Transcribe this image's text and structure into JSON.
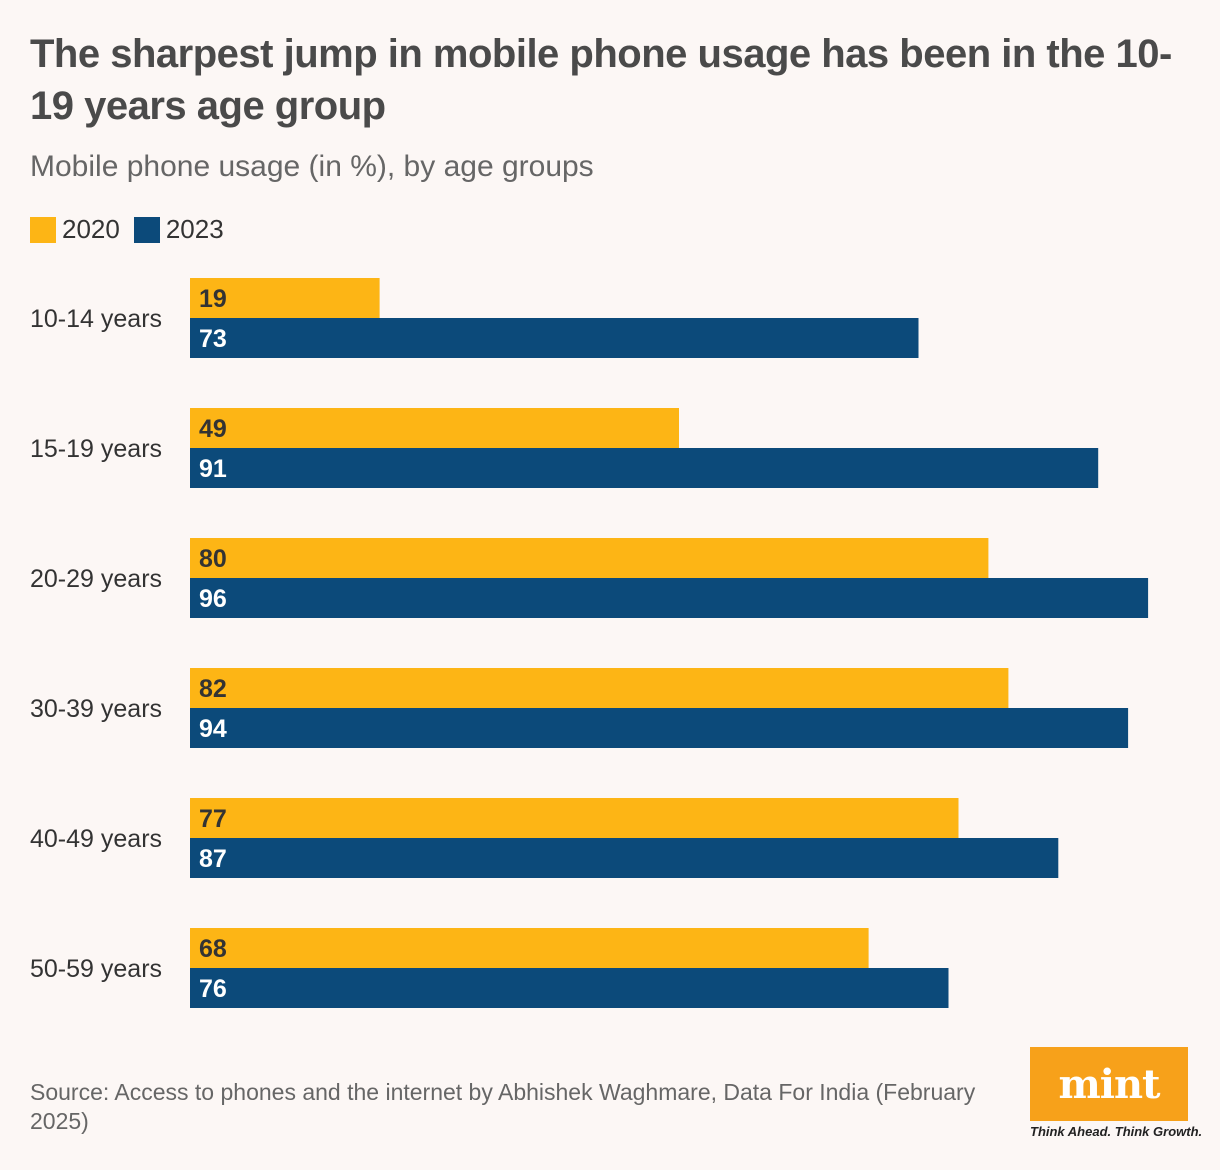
{
  "chart_data": {
    "type": "bar",
    "orientation": "horizontal",
    "title": "The sharpest jump in mobile phone usage has been in the 10-19 years age group",
    "subtitle": "Mobile phone usage (in %), by age groups",
    "categories": [
      "10-14 years",
      "15-19 years",
      "20-29 years",
      "30-39 years",
      "40-49 years",
      "50-59 years"
    ],
    "series": [
      {
        "name": "2020",
        "color": "#fdb515",
        "values": [
          19,
          49,
          80,
          82,
          77,
          68
        ]
      },
      {
        "name": "2023",
        "color": "#0c4a7a",
        "values": [
          73,
          91,
          96,
          94,
          87,
          76
        ]
      }
    ],
    "xlim": [
      0,
      100
    ],
    "grid": false,
    "legend_position": "top-left",
    "source": "Source: Access to phones and the internet by Abhishek Waghmare, Data For India (February 2025)"
  },
  "brand": {
    "logo": "mint",
    "tagline": "Think Ahead. Think Growth.",
    "logo_color": "#f7a11a"
  }
}
